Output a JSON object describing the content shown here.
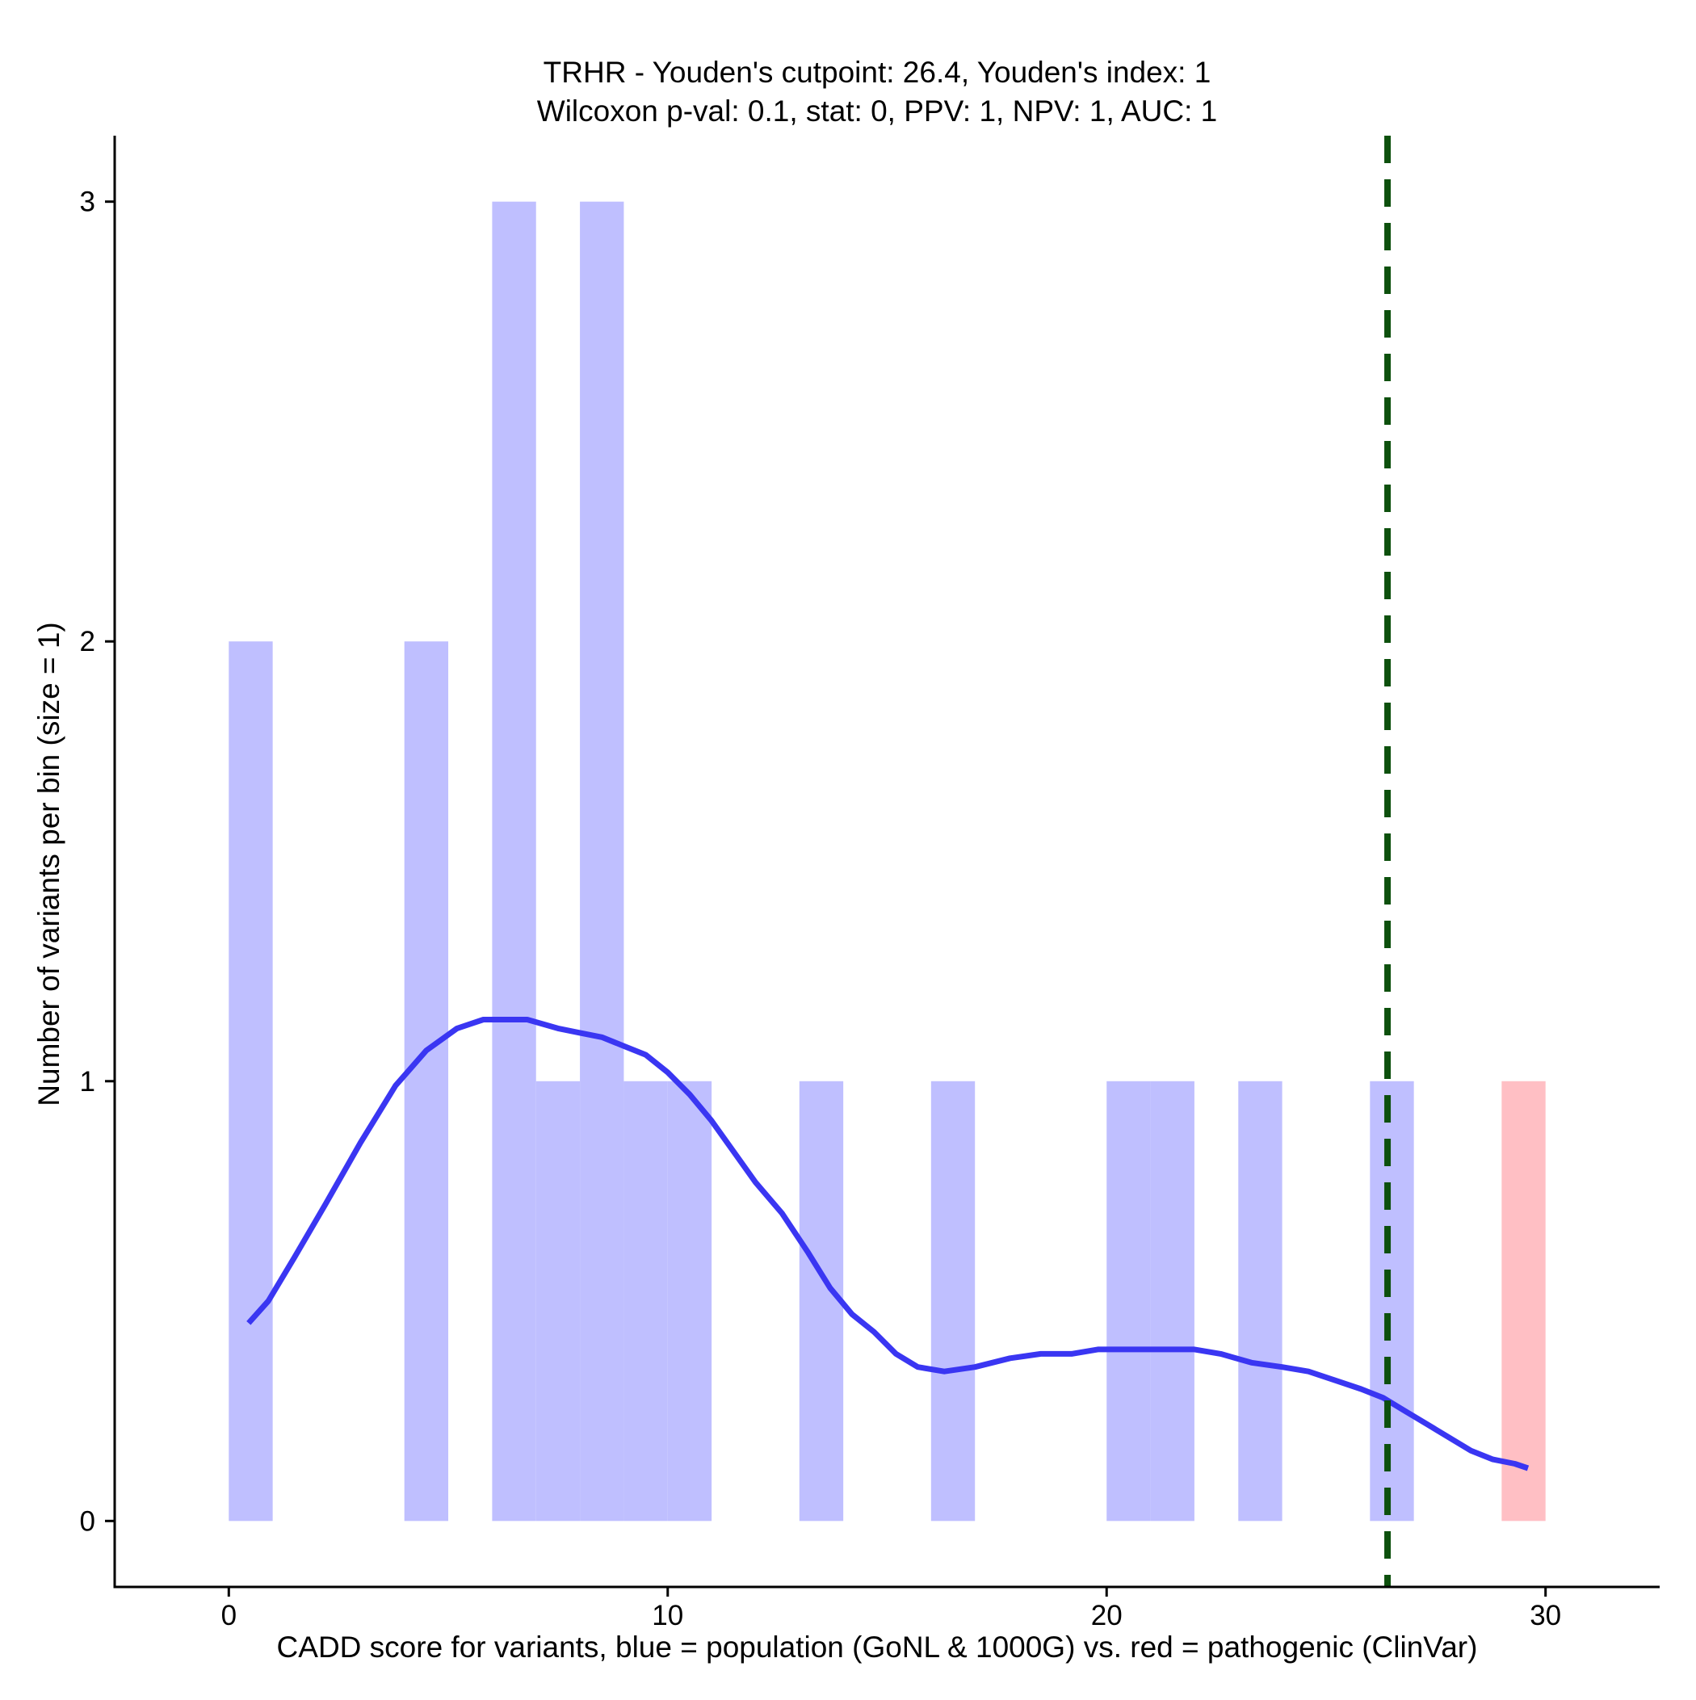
{
  "chart_data": {
    "type": "bar",
    "title_line1": "TRHR - Youden's cutpoint: 26.4, Youden's index: 1",
    "title_line2": "Wilcoxon p-val: 0.1, stat: 0, PPV: 1, NPV: 1, AUC: 1",
    "xlabel": "CADD score for variants, blue = population (GoNL & 1000G) vs. red = pathogenic (ClinVar)",
    "ylabel": "Number of variants per bin (size = 1)",
    "xlim": [
      -2.6,
      32.6
    ],
    "ylim": [
      -0.15,
      3.15
    ],
    "x_ticks": [
      0,
      10,
      20,
      30
    ],
    "x_tick_labels": [
      "0",
      "10",
      "20",
      "30"
    ],
    "y_ticks": [
      0,
      1,
      2,
      3
    ],
    "y_tick_labels": [
      "0",
      "1",
      "2",
      "3"
    ],
    "bin_size": 1,
    "colors": {
      "population": "#bfbfff",
      "pathogenic": "#ffbfc4",
      "density": "#3a36f2",
      "cutpoint": "#0d500d"
    },
    "series": [
      {
        "group": "population",
        "bins": [
          {
            "x0": 0,
            "x1": 1,
            "count": 2
          },
          {
            "x0": 4,
            "x1": 5,
            "count": 2
          },
          {
            "x0": 6,
            "x1": 7,
            "count": 3
          },
          {
            "x0": 7,
            "x1": 8,
            "count": 1
          },
          {
            "x0": 8,
            "x1": 9,
            "count": 3
          },
          {
            "x0": 9,
            "x1": 10,
            "count": 1
          },
          {
            "x0": 10,
            "x1": 11,
            "count": 1
          },
          {
            "x0": 13,
            "x1": 14,
            "count": 1
          },
          {
            "x0": 16,
            "x1": 17,
            "count": 1
          },
          {
            "x0": 20,
            "x1": 21,
            "count": 1
          },
          {
            "x0": 21,
            "x1": 22,
            "count": 1
          },
          {
            "x0": 23,
            "x1": 24,
            "count": 1
          },
          {
            "x0": 26,
            "x1": 27,
            "count": 1
          }
        ]
      },
      {
        "group": "pathogenic",
        "bins": [
          {
            "x0": 29,
            "x1": 30,
            "count": 1
          }
        ]
      }
    ],
    "density_curve": {
      "x": [
        0.45,
        0.9,
        1.5,
        2.2,
        3.0,
        3.8,
        4.5,
        5.2,
        5.8,
        6.3,
        6.8,
        7.5,
        8.0,
        8.5,
        9.0,
        9.5,
        10.0,
        10.5,
        11.0,
        11.5,
        12.0,
        12.6,
        13.2,
        13.7,
        14.2,
        14.7,
        15.2,
        15.7,
        16.3,
        17.0,
        17.8,
        18.5,
        19.2,
        19.8,
        20.5,
        21.0,
        21.5,
        22.0,
        22.6,
        23.3,
        24.0,
        24.6,
        25.2,
        25.8,
        26.3,
        26.8,
        27.3,
        27.8,
        28.3,
        28.8,
        29.3,
        29.6
      ],
      "y": [
        0.45,
        0.5,
        0.6,
        0.72,
        0.86,
        0.99,
        1.07,
        1.12,
        1.14,
        1.14,
        1.14,
        1.12,
        1.11,
        1.1,
        1.08,
        1.06,
        1.02,
        0.97,
        0.91,
        0.84,
        0.77,
        0.7,
        0.61,
        0.53,
        0.47,
        0.43,
        0.38,
        0.35,
        0.34,
        0.35,
        0.37,
        0.38,
        0.38,
        0.39,
        0.39,
        0.39,
        0.39,
        0.39,
        0.38,
        0.36,
        0.35,
        0.34,
        0.32,
        0.3,
        0.28,
        0.25,
        0.22,
        0.19,
        0.16,
        0.14,
        0.13,
        0.12
      ]
    },
    "cutpoint": 26.4,
    "grid": false,
    "legend": "none"
  }
}
